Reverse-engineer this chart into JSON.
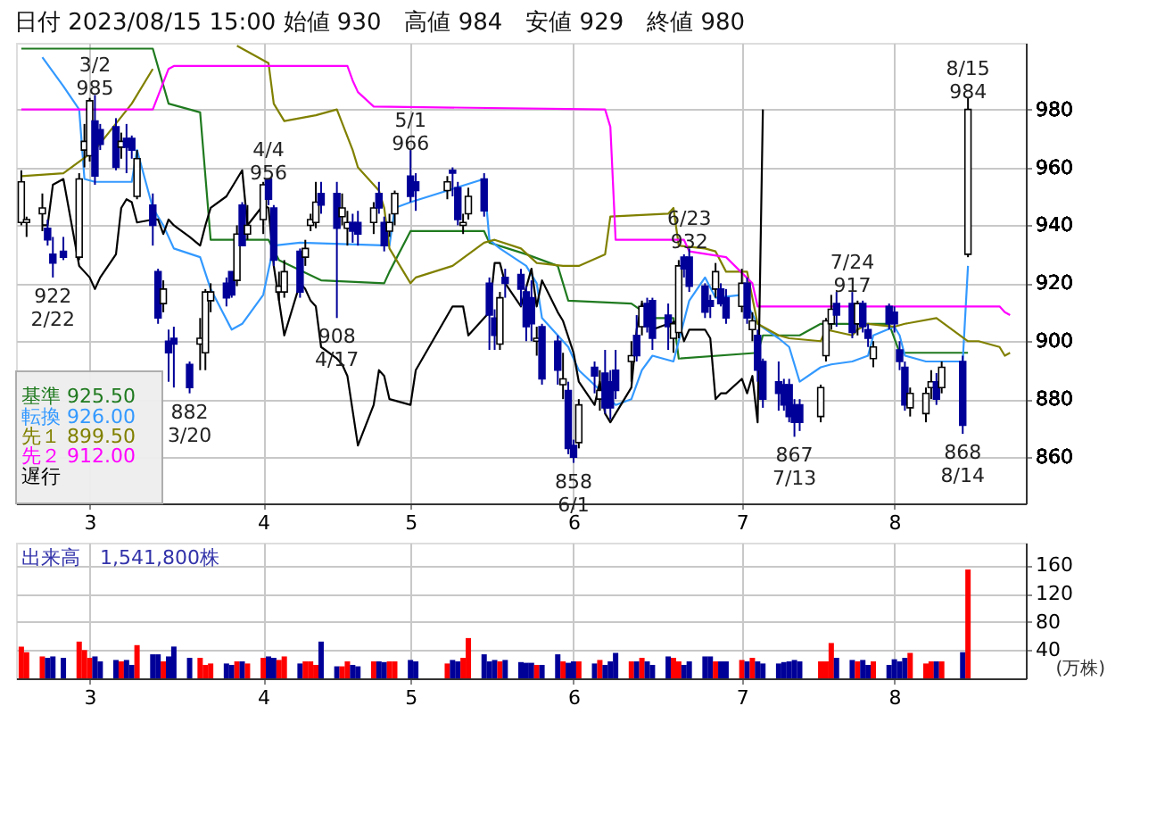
{
  "chart_data": [
    {
      "type": "candlestick",
      "title": "日付 2023/08/15 15:00 始値 930　高値 984　安値 929　終値 980",
      "x": [
        "2023-02-16",
        "2023-02-17",
        "2023-02-20",
        "2023-02-21",
        "2023-02-22",
        "2023-02-24",
        "2023-02-27",
        "2023-02-28",
        "2023-03-01",
        "2023-03-02",
        "2023-03-03",
        "2023-03-06",
        "2023-03-07",
        "2023-03-08",
        "2023-03-09",
        "2023-03-10",
        "2023-03-13",
        "2023-03-14",
        "2023-03-15",
        "2023-03-16",
        "2023-03-17",
        "2023-03-20",
        "2023-03-22",
        "2023-03-23",
        "2023-03-24",
        "2023-03-27",
        "2023-03-28",
        "2023-03-29",
        "2023-03-30",
        "2023-03-31",
        "2023-04-03",
        "2023-04-04",
        "2023-04-05",
        "2023-04-06",
        "2023-04-07",
        "2023-04-10",
        "2023-04-11",
        "2023-04-12",
        "2023-04-13",
        "2023-04-14",
        "2023-04-17",
        "2023-04-18",
        "2023-04-19",
        "2023-04-20",
        "2023-04-21",
        "2023-04-24",
        "2023-04-25",
        "2023-04-26",
        "2023-04-27",
        "2023-04-28",
        "2023-05-01",
        "2023-05-02",
        "2023-05-08",
        "2023-05-09",
        "2023-05-10",
        "2023-05-11",
        "2023-05-12",
        "2023-05-15",
        "2023-05-16",
        "2023-05-17",
        "2023-05-18",
        "2023-05-19",
        "2023-05-22",
        "2023-05-23",
        "2023-05-24",
        "2023-05-25",
        "2023-05-26",
        "2023-05-29",
        "2023-05-30",
        "2023-05-31",
        "2023-06-01",
        "2023-06-02",
        "2023-06-05",
        "2023-06-06",
        "2023-06-07",
        "2023-06-08",
        "2023-06-09",
        "2023-06-12",
        "2023-06-13",
        "2023-06-14",
        "2023-06-15",
        "2023-06-16",
        "2023-06-19",
        "2023-06-20",
        "2023-06-21",
        "2023-06-22",
        "2023-06-23",
        "2023-06-26",
        "2023-06-27",
        "2023-06-28",
        "2023-06-29",
        "2023-06-30",
        "2023-07-03",
        "2023-07-04",
        "2023-07-05",
        "2023-07-06",
        "2023-07-07",
        "2023-07-10",
        "2023-07-11",
        "2023-07-12",
        "2023-07-13",
        "2023-07-14",
        "2023-07-18",
        "2023-07-19",
        "2023-07-20",
        "2023-07-21",
        "2023-07-24",
        "2023-07-25",
        "2023-07-26",
        "2023-07-27",
        "2023-07-28",
        "2023-07-31",
        "2023-08-01",
        "2023-08-02",
        "2023-08-03",
        "2023-08-04",
        "2023-08-07",
        "2023-08-08",
        "2023-08-09",
        "2023-08-10",
        "2023-08-14",
        "2023-08-15"
      ],
      "ohlc": [
        [
          941,
          959,
          940,
          955
        ],
        [
          941,
          943,
          936,
          942
        ],
        [
          944,
          951,
          938,
          946
        ],
        [
          939,
          942,
          933,
          935
        ],
        [
          930,
          936,
          922,
          927
        ],
        [
          931,
          936,
          928,
          929
        ],
        [
          929,
          958,
          928,
          956
        ],
        [
          966,
          975,
          960,
          969
        ],
        [
          964,
          984,
          962,
          983
        ],
        [
          976,
          985,
          954,
          957
        ],
        [
          973,
          975,
          966,
          968
        ],
        [
          974,
          977,
          959,
          960
        ],
        [
          967,
          972,
          963,
          969
        ],
        [
          970,
          975,
          958,
          967
        ],
        [
          970,
          971,
          963,
          966
        ],
        [
          950,
          966,
          949,
          963
        ],
        [
          947,
          951,
          933,
          940
        ],
        [
          924,
          925,
          906,
          908
        ],
        [
          913,
          921,
          910,
          918
        ],
        [
          900,
          904,
          886,
          896
        ],
        [
          901,
          905,
          884,
          899
        ],
        [
          892,
          893,
          882,
          884
        ],
        [
          899,
          908,
          890,
          901
        ],
        [
          896,
          918,
          890,
          917
        ],
        [
          914,
          920,
          910,
          917
        ],
        [
          920,
          922,
          912,
          915
        ],
        [
          924,
          924,
          915,
          916
        ],
        [
          921,
          940,
          919,
          937
        ],
        [
          947,
          948,
          933,
          933
        ],
        [
          937,
          947,
          935,
          940
        ],
        [
          942,
          955,
          937,
          954
        ],
        [
          956,
          956,
          947,
          949
        ],
        [
          946,
          947,
          926,
          928
        ],
        [
          917,
          924,
          914,
          919
        ],
        [
          917,
          928,
          915,
          924
        ],
        [
          931,
          932,
          915,
          917
        ],
        [
          929,
          935,
          926,
          932
        ],
        [
          940,
          944,
          938,
          942
        ],
        [
          941,
          955,
          939,
          948
        ],
        [
          951,
          955,
          944,
          947
        ],
        [
          951,
          955,
          908,
          939
        ],
        [
          943,
          951,
          940,
          946
        ],
        [
          939,
          945,
          933,
          941
        ],
        [
          941,
          944,
          934,
          938
        ],
        [
          941,
          945,
          933,
          937
        ],
        [
          941,
          948,
          937,
          946
        ],
        [
          951,
          955,
          944,
          946
        ],
        [
          941,
          943,
          931,
          933
        ],
        [
          938,
          944,
          936,
          941
        ],
        [
          944,
          952,
          940,
          951
        ],
        [
          957,
          966,
          948,
          950
        ],
        [
          955,
          958,
          945,
          952
        ],
        [
          952,
          957,
          949,
          955
        ],
        [
          959,
          960,
          950,
          958
        ],
        [
          953,
          955,
          940,
          942
        ],
        [
          940,
          944,
          937,
          941
        ],
        [
          944,
          953,
          942,
          950
        ],
        [
          956,
          958,
          943,
          945
        ],
        [
          920,
          922,
          897,
          909
        ],
        [
          908,
          911,
          897,
          902
        ],
        [
          899,
          917,
          897,
          915
        ],
        [
          922,
          925,
          915,
          920
        ],
        [
          923,
          925,
          912,
          918
        ],
        [
          917,
          919,
          900,
          905
        ],
        [
          915,
          921,
          900,
          906
        ],
        [
          900,
          905,
          895,
          901
        ],
        [
          905,
          906,
          885,
          887
        ],
        [
          900,
          902,
          885,
          890
        ],
        [
          885,
          896,
          880,
          887
        ],
        [
          883,
          886,
          861,
          863
        ],
        [
          864,
          866,
          858,
          860
        ],
        [
          865,
          880,
          863,
          878
        ],
        [
          891,
          893,
          882,
          888
        ],
        [
          880,
          890,
          876,
          883
        ],
        [
          889,
          897,
          875,
          877
        ],
        [
          886,
          890,
          873,
          877
        ],
        [
          890,
          897,
          880,
          883
        ],
        [
          893,
          900,
          886,
          895
        ],
        [
          902,
          909,
          893,
          895
        ],
        [
          905,
          914,
          902,
          912
        ],
        [
          913,
          915,
          903,
          905
        ],
        [
          914,
          915,
          897,
          901
        ],
        [
          909,
          913,
          897,
          905
        ],
        [
          901,
          907,
          896,
          906
        ],
        [
          903,
          928,
          901,
          926
        ],
        [
          929,
          930,
          922,
          925
        ],
        [
          929,
          932,
          917,
          919
        ],
        [
          919,
          920,
          908,
          910
        ],
        [
          914,
          916,
          908,
          912
        ],
        [
          918,
          927,
          915,
          924
        ],
        [
          918,
          920,
          912,
          913
        ],
        [
          915,
          918,
          906,
          908
        ],
        [
          912,
          925,
          910,
          920
        ],
        [
          920,
          922,
          906,
          908
        ],
        [
          904,
          910,
          900,
          907
        ],
        [
          902,
          904,
          886,
          890
        ],
        [
          893,
          894,
          877,
          880
        ],
        [
          886,
          893,
          876,
          882
        ],
        [
          885,
          887,
          876,
          878
        ],
        [
          885,
          887,
          872,
          874
        ],
        [
          878,
          880,
          867,
          872
        ],
        [
          878,
          880,
          869,
          872
        ],
        [
          874,
          885,
          872,
          884
        ],
        [
          895,
          908,
          893,
          907
        ],
        [
          906,
          916,
          904,
          911
        ],
        [
          913,
          917,
          905,
          909
        ],
        [
          913,
          917,
          901,
          903
        ],
        [
          906,
          914,
          902,
          913
        ],
        [
          913,
          914,
          903,
          905
        ],
        [
          904,
          906,
          898,
          901
        ],
        [
          894,
          900,
          891,
          898
        ],
        [
          912,
          913,
          904,
          906
        ],
        [
          910,
          912,
          903,
          906
        ],
        [
          897,
          900,
          890,
          893
        ],
        [
          891,
          893,
          876,
          878
        ],
        [
          877,
          884,
          874,
          882
        ],
        [
          875,
          884,
          872,
          882
        ],
        [
          884,
          890,
          880,
          886
        ],
        [
          886,
          889,
          878,
          880
        ],
        [
          884,
          893,
          882,
          891
        ],
        [
          893,
          895,
          868,
          871
        ],
        [
          930,
          984,
          929,
          980
        ]
      ],
      "series": [
        {
          "name": "基準 925.50",
          "type": "line",
          "color": "#1f7a1f",
          "x": [
            "2023-02-16",
            "2023-03-13",
            "2023-03-16",
            "2023-03-22",
            "2023-03-24",
            "2023-04-04",
            "2023-04-06",
            "2023-04-14",
            "2023-04-26",
            "2023-04-27",
            "2023-05-01",
            "2023-05-15",
            "2023-05-16",
            "2023-05-23",
            "2023-05-29",
            "2023-05-31",
            "2023-06-12",
            "2023-06-16",
            "2023-06-20",
            "2023-06-21",
            "2023-07-06",
            "2023-07-07",
            "2023-07-14",
            "2023-07-18",
            "2023-07-31",
            "2023-08-02",
            "2023-08-15"
          ],
          "values": [
            1001,
            1001,
            982,
            979,
            935,
            935,
            928,
            921,
            920,
            924,
            938,
            938,
            934,
            930,
            926,
            914,
            913,
            908,
            908,
            894,
            896,
            902,
            902,
            906,
            906,
            896,
            896
          ]
        },
        {
          "name": "転換 926.00",
          "type": "line",
          "color": "#3399ff",
          "x": [
            "2023-02-20",
            "2023-02-24",
            "2023-02-27",
            "2023-02-28",
            "2023-03-02",
            "2023-03-09",
            "2023-03-10",
            "2023-03-13",
            "2023-03-15",
            "2023-03-17",
            "2023-03-22",
            "2023-03-24",
            "2023-03-28",
            "2023-03-30",
            "2023-04-03",
            "2023-04-05",
            "2023-04-10",
            "2023-04-27",
            "2023-04-28",
            "2023-05-01",
            "2023-05-15",
            "2023-05-16",
            "2023-05-18",
            "2023-05-23",
            "2023-05-25",
            "2023-05-26",
            "2023-05-31",
            "2023-06-02",
            "2023-06-09",
            "2023-06-12",
            "2023-06-14",
            "2023-06-16",
            "2023-06-20",
            "2023-06-23",
            "2023-06-26",
            "2023-06-28",
            "2023-07-03",
            "2023-07-06",
            "2023-07-10",
            "2023-07-12",
            "2023-07-14",
            "2023-07-18",
            "2023-07-20",
            "2023-07-24",
            "2023-07-27",
            "2023-07-28",
            "2023-08-01",
            "2023-08-02",
            "2023-08-03",
            "2023-08-07",
            "2023-08-14",
            "2023-08-15"
          ],
          "values": [
            998,
            988,
            980,
            956,
            955,
            955,
            966,
            946,
            940,
            932,
            929,
            918,
            904,
            906,
            916,
            933,
            934,
            933,
            946,
            948,
            956,
            935,
            932,
            926,
            920,
            908,
            898,
            890,
            878,
            880,
            890,
            895,
            893,
            914,
            922,
            915,
            916,
            906,
            901,
            898,
            886,
            891,
            892,
            893,
            895,
            902,
            905,
            902,
            895,
            893,
            893,
            926
          ]
        },
        {
          "name": "先１ 899.50",
          "type": "line",
          "color": "#808000",
          "x": [
            "2023-02-16",
            "2023-02-24",
            "2023-03-02",
            "2023-03-09",
            "2023-03-13",
            "2023-03-15",
            "2023-03-28",
            "2023-03-29",
            "2023-04-04",
            "2023-04-05",
            "2023-04-07",
            "2023-04-13",
            "2023-04-17",
            "2023-04-20",
            "2023-04-21",
            "2023-04-25",
            "2023-04-26",
            "2023-04-27",
            "2023-05-01",
            "2023-05-02",
            "2023-05-09",
            "2023-05-15",
            "2023-05-17",
            "2023-05-22",
            "2023-05-25",
            "2023-05-30",
            "2023-06-02",
            "2023-06-07",
            "2023-06-08",
            "2023-06-19",
            "2023-06-20",
            "2023-06-21",
            "2023-06-26",
            "2023-06-28",
            "2023-06-30",
            "2023-07-04",
            "2023-07-06",
            "2023-07-10",
            "2023-07-12",
            "2023-07-18",
            "2023-07-19",
            "2023-07-24",
            "2023-07-25",
            "2023-07-27",
            "2023-08-01",
            "2023-08-03",
            "2023-08-09",
            "2023-08-15",
            "2023-08-17",
            "2023-08-21",
            "2023-08-22",
            "2023-08-23"
          ],
          "values": [
            957,
            958,
            966,
            982,
            994,
            null,
            null,
            1002,
            996,
            982,
            976,
            978,
            980,
            966,
            960,
            952,
            946,
            932,
            920,
            922,
            926,
            934,
            935,
            932,
            927,
            926,
            926,
            930,
            943,
            944,
            946,
            933,
            932,
            931,
            924,
            924,
            906,
            902,
            901,
            900,
            904,
            902,
            904,
            906,
            905,
            906,
            908,
            900,
            900,
            898,
            895,
            896
          ]
        },
        {
          "name": "先２ 912.00",
          "type": "line",
          "color": "#ff00ff",
          "x": [
            "2023-02-16",
            "2023-03-13",
            "2023-03-16",
            "2023-03-17",
            "2023-04-19",
            "2023-04-20",
            "2023-04-21",
            "2023-04-24",
            "2023-06-07",
            "2023-06-08",
            "2023-06-09",
            "2023-06-22",
            "2023-06-23",
            "2023-06-30",
            "2023-07-05",
            "2023-07-06",
            "2023-08-21",
            "2023-08-22",
            "2023-08-23"
          ],
          "values": [
            980,
            980,
            994,
            995,
            995,
            990,
            986,
            981,
            980,
            974,
            935,
            935,
            931,
            929,
            920,
            912,
            912,
            910,
            909
          ]
        },
        {
          "name": "遅行",
          "type": "line",
          "color": "#000000",
          "x": [
            "2023-02-20",
            "2023-02-21",
            "2023-02-22",
            "2023-02-24",
            "2023-02-27",
            "2023-02-28",
            "2023-03-01",
            "2023-03-02",
            "2023-03-03",
            "2023-03-06",
            "2023-03-07",
            "2023-03-08",
            "2023-03-09",
            "2023-03-10",
            "2023-03-13",
            "2023-03-14",
            "2023-03-15",
            "2023-03-16",
            "2023-03-17",
            "2023-03-20",
            "2023-03-22",
            "2023-03-23",
            "2023-03-24",
            "2023-03-27",
            "2023-03-28",
            "2023-03-29",
            "2023-03-30",
            "2023-03-31",
            "2023-04-03",
            "2023-04-04",
            "2023-04-05",
            "2023-04-06",
            "2023-04-07",
            "2023-04-10",
            "2023-04-11",
            "2023-04-12",
            "2023-04-13",
            "2023-04-14",
            "2023-04-17",
            "2023-04-18",
            "2023-04-19",
            "2023-04-20",
            "2023-04-21",
            "2023-04-24",
            "2023-04-25",
            "2023-04-26",
            "2023-04-27",
            "2023-05-01",
            "2023-05-02",
            "2023-05-09",
            "2023-05-11",
            "2023-05-12",
            "2023-05-16",
            "2023-05-17",
            "2023-05-18",
            "2023-05-19",
            "2023-05-22",
            "2023-05-24",
            "2023-05-25",
            "2023-05-26",
            "2023-05-29",
            "2023-05-30",
            "2023-06-01",
            "2023-06-02",
            "2023-06-05",
            "2023-06-06",
            "2023-06-07",
            "2023-06-08",
            "2023-06-12",
            "2023-06-13",
            "2023-06-14",
            "2023-06-16",
            "2023-06-19",
            "2023-06-21",
            "2023-06-22",
            "2023-06-23",
            "2023-06-26",
            "2023-06-27",
            "2023-06-28",
            "2023-06-29",
            "2023-06-30",
            "2023-07-03",
            "2023-07-04",
            "2023-07-05",
            "2023-07-06",
            "2023-07-07"
          ],
          "values": [
            940,
            940,
            954,
            956,
            926,
            924,
            922,
            918,
            922,
            930,
            946,
            949,
            948,
            941,
            942,
            942,
            937,
            942,
            940,
            936,
            933,
            940,
            946,
            950,
            953,
            956,
            959,
            940,
            947,
            946,
            926,
            914,
            902,
            920,
            918,
            914,
            912,
            898,
            894,
            892,
            888,
            876,
            864,
            878,
            890,
            888,
            880,
            878,
            890,
            912,
            912,
            902,
            910,
            927,
            927,
            920,
            912,
            925,
            912,
            921,
            910,
            907,
            896,
            886,
            878,
            886,
            875,
            872,
            884,
            904,
            913,
            904,
            906,
            907,
            900,
            904,
            904,
            901,
            880,
            882,
            882,
            887,
            882,
            888,
            872,
            980
          ]
        }
      ],
      "xlim": [
        "2023-02-15",
        "2023-08-26"
      ],
      "xticks": [
        {
          "value": "2023-03-01",
          "label": "3"
        },
        {
          "value": "2023-04-03",
          "label": "4"
        },
        {
          "value": "2023-05-01",
          "label": "5"
        },
        {
          "value": "2023-06-01",
          "label": "6"
        },
        {
          "value": "2023-07-03",
          "label": "7"
        },
        {
          "value": "2023-08-01",
          "label": "8"
        }
      ],
      "ylim": [
        844,
        1003
      ],
      "yticks": [
        860,
        880,
        900,
        920,
        940,
        960,
        980
      ],
      "grid": true,
      "legend": "bottom left",
      "annotations": [
        {
          "text": "3/2\n985",
          "x": "2023-03-02",
          "y": 985
        },
        {
          "text": "4/4\n956",
          "x": "2023-04-04",
          "y": 956
        },
        {
          "text": "5/1\n966",
          "x": "2023-05-01",
          "y": 966
        },
        {
          "text": "6/23\n932",
          "x": "2023-06-23",
          "y": 932
        },
        {
          "text": "7/24\n917",
          "x": "2023-07-24",
          "y": 917
        },
        {
          "text": "8/15\n984",
          "x": "2023-08-15",
          "y": 984
        },
        {
          "text": "922\n2/22",
          "x": "2023-02-22",
          "y": 922
        },
        {
          "text": "882\n3/20",
          "x": "2023-03-20",
          "y": 882
        },
        {
          "text": "908\n4/17",
          "x": "2023-04-17",
          "y": 908
        },
        {
          "text": "858\n6/1",
          "x": "2023-06-01",
          "y": 858
        },
        {
          "text": "867\n7/13",
          "x": "2023-07-13",
          "y": 867
        },
        {
          "text": "868\n8/14",
          "x": "2023-08-14",
          "y": 868
        }
      ]
    },
    {
      "type": "bar",
      "title": "出来高　1,541,800株",
      "ylabel": "(万株)",
      "x": [
        "2023-02-16",
        "2023-02-17",
        "2023-02-20",
        "2023-02-21",
        "2023-02-22",
        "2023-02-24",
        "2023-02-27",
        "2023-02-28",
        "2023-03-01",
        "2023-03-02",
        "2023-03-03",
        "2023-03-06",
        "2023-03-07",
        "2023-03-08",
        "2023-03-09",
        "2023-03-10",
        "2023-03-13",
        "2023-03-14",
        "2023-03-15",
        "2023-03-16",
        "2023-03-17",
        "2023-03-20",
        "2023-03-22",
        "2023-03-23",
        "2023-03-24",
        "2023-03-27",
        "2023-03-28",
        "2023-03-29",
        "2023-03-30",
        "2023-03-31",
        "2023-04-03",
        "2023-04-04",
        "2023-04-05",
        "2023-04-06",
        "2023-04-07",
        "2023-04-10",
        "2023-04-11",
        "2023-04-12",
        "2023-04-13",
        "2023-04-14",
        "2023-04-17",
        "2023-04-18",
        "2023-04-19",
        "2023-04-20",
        "2023-04-21",
        "2023-04-24",
        "2023-04-25",
        "2023-04-26",
        "2023-04-27",
        "2023-04-28",
        "2023-05-01",
        "2023-05-02",
        "2023-05-08",
        "2023-05-09",
        "2023-05-10",
        "2023-05-11",
        "2023-05-12",
        "2023-05-15",
        "2023-05-16",
        "2023-05-17",
        "2023-05-18",
        "2023-05-19",
        "2023-05-22",
        "2023-05-23",
        "2023-05-24",
        "2023-05-25",
        "2023-05-26",
        "2023-05-29",
        "2023-05-30",
        "2023-05-31",
        "2023-06-01",
        "2023-06-02",
        "2023-06-05",
        "2023-06-06",
        "2023-06-07",
        "2023-06-08",
        "2023-06-09",
        "2023-06-12",
        "2023-06-13",
        "2023-06-14",
        "2023-06-15",
        "2023-06-16",
        "2023-06-19",
        "2023-06-20",
        "2023-06-21",
        "2023-06-22",
        "2023-06-23",
        "2023-06-26",
        "2023-06-27",
        "2023-06-28",
        "2023-06-29",
        "2023-06-30",
        "2023-07-03",
        "2023-07-04",
        "2023-07-05",
        "2023-07-06",
        "2023-07-07",
        "2023-07-10",
        "2023-07-11",
        "2023-07-12",
        "2023-07-13",
        "2023-07-14",
        "2023-07-18",
        "2023-07-19",
        "2023-07-20",
        "2023-07-21",
        "2023-07-24",
        "2023-07-25",
        "2023-07-26",
        "2023-07-27",
        "2023-07-28",
        "2023-07-31",
        "2023-08-01",
        "2023-08-02",
        "2023-08-03",
        "2023-08-04",
        "2023-08-07",
        "2023-08-08",
        "2023-08-09",
        "2023-08-10",
        "2023-08-14",
        "2023-08-15"
      ],
      "values": [
        45,
        37,
        31,
        29,
        31,
        29,
        52,
        40,
        29,
        31,
        24,
        26,
        24,
        26,
        19,
        47,
        34,
        34,
        24,
        31,
        45,
        29,
        29,
        19,
        21,
        21,
        19,
        24,
        24,
        21,
        29,
        31,
        29,
        26,
        31,
        21,
        24,
        24,
        19,
        52,
        17,
        17,
        24,
        19,
        17,
        24,
        24,
        23,
        24,
        24,
        26,
        24,
        21,
        26,
        24,
        29,
        57,
        34,
        24,
        26,
        24,
        26,
        23,
        22,
        22,
        19,
        19,
        34,
        24,
        22,
        24,
        24,
        21,
        26,
        19,
        24,
        36,
        24,
        24,
        29,
        24,
        19,
        31,
        29,
        24,
        19,
        24,
        31,
        31,
        24,
        24,
        24,
        26,
        24,
        29,
        24,
        21,
        21,
        23,
        24,
        26,
        24,
        24,
        24,
        50,
        29,
        26,
        24,
        26,
        19,
        24,
        19,
        27,
        24,
        29,
        36,
        21,
        24,
        24,
        24,
        37,
        154
      ],
      "colors": [
        "#ff0000",
        "#ff0000",
        "#ff0000",
        "#000099",
        "#000099",
        "#000099",
        "#ff0000",
        "#ff0000",
        "#ff0000",
        "#000099",
        "#000099",
        "#000099",
        "#ff0000",
        "#000099",
        "#000099",
        "#ff0000",
        "#000099",
        "#000099",
        "#ff0000",
        "#000099",
        "#000099",
        "#000099",
        "#ff0000",
        "#ff0000",
        "#ff0000",
        "#000099",
        "#000099",
        "#ff0000",
        "#000099",
        "#ff0000",
        "#ff0000",
        "#000099",
        "#000099",
        "#ff0000",
        "#ff0000",
        "#000099",
        "#ff0000",
        "#ff0000",
        "#ff0000",
        "#000099",
        "#000099",
        "#ff0000",
        "#ff0000",
        "#000099",
        "#000099",
        "#ff0000",
        "#000099",
        "#000099",
        "#ff0000",
        "#ff0000",
        "#000099",
        "#000099",
        "#ff0000",
        "#000099",
        "#000099",
        "#ff0000",
        "#ff0000",
        "#000099",
        "#000099",
        "#000099",
        "#ff0000",
        "#000099",
        "#000099",
        "#000099",
        "#000099",
        "#ff0000",
        "#000099",
        "#000099",
        "#ff0000",
        "#000099",
        "#000099",
        "#ff0000",
        "#000099",
        "#ff0000",
        "#000099",
        "#000099",
        "#000099",
        "#ff0000",
        "#000099",
        "#ff0000",
        "#000099",
        "#000099",
        "#000099",
        "#ff0000",
        "#ff0000",
        "#000099",
        "#000099",
        "#000099",
        "#000099",
        "#ff0000",
        "#000099",
        "#000099",
        "#ff0000",
        "#000099",
        "#ff0000",
        "#000099",
        "#000099",
        "#000099",
        "#000099",
        "#000099",
        "#000099",
        "#000099",
        "#ff0000",
        "#ff0000",
        "#ff0000",
        "#000099",
        "#000099",
        "#ff0000",
        "#000099",
        "#000099",
        "#ff0000",
        "#000099",
        "#000099",
        "#000099",
        "#000099",
        "#ff0000",
        "#ff0000",
        "#ff0000",
        "#000099",
        "#ff0000",
        "#000099",
        "#ff0000"
      ],
      "xlim": [
        "2023-02-15",
        "2023-08-26"
      ],
      "xticks": [
        {
          "value": "2023-03-01",
          "label": "3"
        },
        {
          "value": "2023-04-03",
          "label": "4"
        },
        {
          "value": "2023-05-01",
          "label": "5"
        },
        {
          "value": "2023-06-01",
          "label": "6"
        },
        {
          "value": "2023-07-03",
          "label": "7"
        },
        {
          "value": "2023-08-01",
          "label": "8"
        }
      ],
      "ylim": [
        0,
        192
      ],
      "yticks": [
        40,
        80,
        120,
        160
      ],
      "grid": true
    }
  ]
}
